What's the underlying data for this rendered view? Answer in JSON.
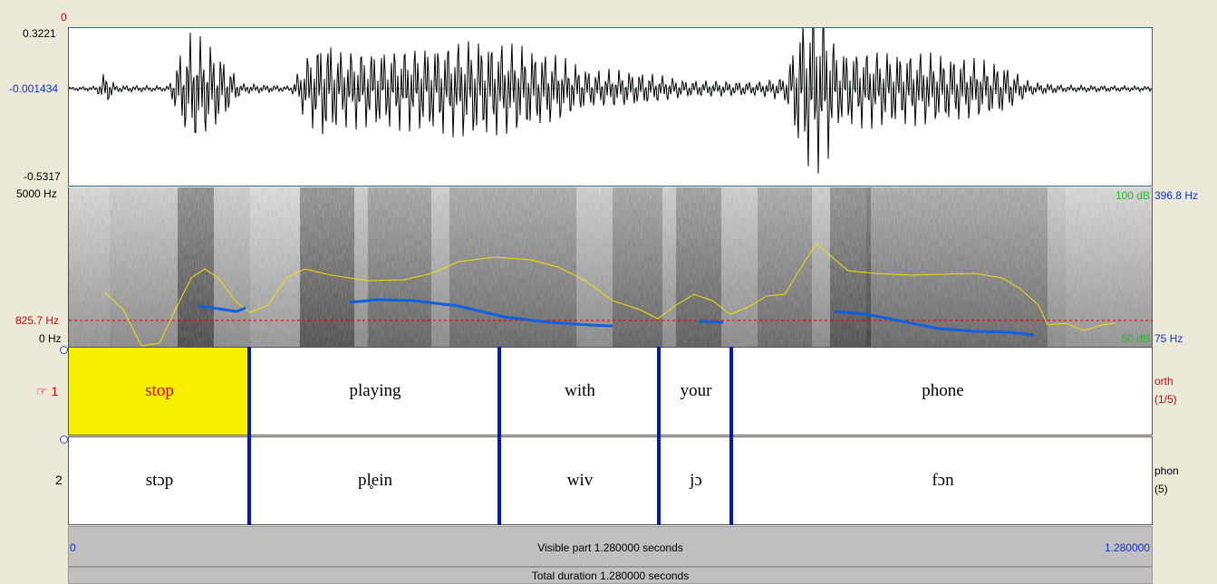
{
  "waveform": {
    "cursor_label": "0",
    "max_label": "0.3221",
    "zero_label": "-0.001434",
    "min_label": "-0.5317"
  },
  "spectrogram": {
    "top_freq": "5000 Hz",
    "cursor_freq": "825.7 Hz",
    "bottom_freq": "0 Hz",
    "top_db": "100 dB",
    "bottom_db": "50 dB",
    "pitch_top": "396.8 Hz",
    "pitch_bottom": "75 Hz"
  },
  "tiers": [
    {
      "number": "1",
      "name": "orth",
      "count": "(1/5)",
      "intervals": [
        "stop",
        "playing",
        "with",
        "your",
        "phone"
      ]
    },
    {
      "number": "2",
      "name": "phon",
      "count": "(5)",
      "intervals": [
        "stɔp",
        "pl̥ein",
        "wiv",
        "jɔ",
        "fɔn"
      ]
    }
  ],
  "visible_bar": {
    "start": "0",
    "label": "Visible part 1.280000 seconds",
    "end": "1.280000"
  },
  "total_bar": {
    "label": "Total duration 1.280000 seconds"
  },
  "colors": {
    "selection": "#f7f000",
    "boundary": "#0018c8",
    "formant": "#f0e000",
    "pitch": "#1060e0"
  }
}
